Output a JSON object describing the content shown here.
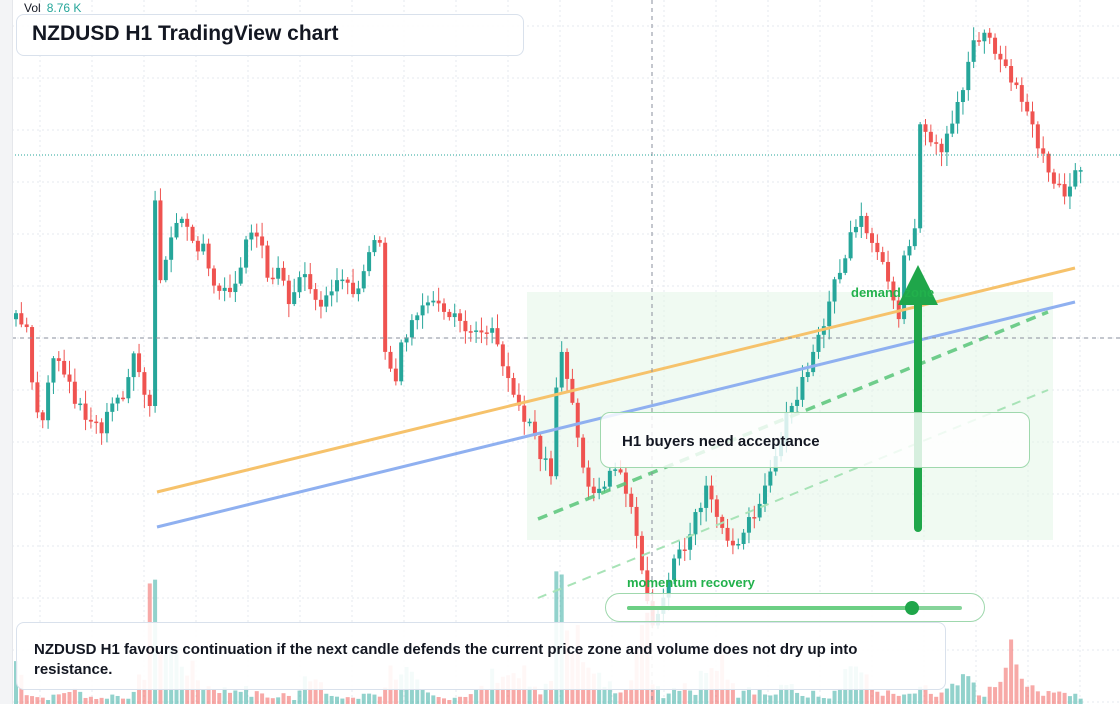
{
  "header": {
    "title": "NZDUSD H1 TradingView chart"
  },
  "volume_readout": {
    "label": "Vol",
    "value": "8.76 K"
  },
  "annotations": {
    "note": "H1 buyers need acceptance",
    "demand_zone_label": "demand zone",
    "momentum_label": "momentum recovery",
    "momentum_level": 0.85
  },
  "footer": {
    "text": "NZDUSD H1 favours continuation if the next candle defends the current price zone and volume does not dry up into resistance."
  },
  "colors": {
    "bull": "#26a69a",
    "bear": "#ef5350",
    "accent_green": "#1fa64a",
    "orange_trendline": "#f6c26b",
    "blue_trendline": "#8fb0f0",
    "grid": "#e6e9ef"
  },
  "chart_data": {
    "type": "candlestick",
    "title": "NZDUSD H1",
    "ylim": [
      0,
      700
    ],
    "close_path": [
      [
        0,
        318
      ],
      [
        2,
        330
      ],
      [
        3,
        390
      ],
      [
        5,
        420
      ],
      [
        7,
        360
      ],
      [
        9,
        372
      ],
      [
        11,
        400
      ],
      [
        14,
        420
      ],
      [
        16,
        428
      ],
      [
        18,
        406
      ],
      [
        20,
        392
      ],
      [
        22,
        360
      ],
      [
        24,
        395
      ],
      [
        25,
        410
      ],
      [
        26,
        202
      ],
      [
        27,
        280
      ],
      [
        29,
        245
      ],
      [
        31,
        215
      ],
      [
        33,
        240
      ],
      [
        35,
        250
      ],
      [
        37,
        290
      ],
      [
        40,
        298
      ],
      [
        42,
        262
      ],
      [
        44,
        232
      ],
      [
        46,
        248
      ],
      [
        47,
        282
      ],
      [
        49,
        268
      ],
      [
        51,
        302
      ],
      [
        53,
        270
      ],
      [
        55,
        282
      ],
      [
        57,
        308
      ],
      [
        59,
        296
      ],
      [
        61,
        276
      ],
      [
        64,
        292
      ],
      [
        66,
        255
      ],
      [
        68,
        236
      ],
      [
        69,
        350
      ],
      [
        71,
        378
      ],
      [
        72,
        346
      ],
      [
        74,
        326
      ],
      [
        76,
        298
      ],
      [
        79,
        306
      ],
      [
        81,
        316
      ],
      [
        84,
        326
      ],
      [
        87,
        332
      ],
      [
        89,
        330
      ],
      [
        91,
        372
      ],
      [
        93,
        388
      ],
      [
        95,
        415
      ],
      [
        97,
        430
      ],
      [
        98,
        460
      ],
      [
        100,
        470
      ],
      [
        101,
        390
      ],
      [
        102,
        356
      ],
      [
        104,
        410
      ],
      [
        106,
        470
      ],
      [
        108,
        488
      ],
      [
        110,
        486
      ],
      [
        112,
        470
      ],
      [
        113,
        478
      ],
      [
        115,
        510
      ],
      [
        117,
        570
      ],
      [
        119,
        630
      ],
      [
        121,
        595
      ],
      [
        123,
        565
      ],
      [
        125,
        550
      ],
      [
        127,
        520
      ],
      [
        129,
        492
      ],
      [
        131,
        520
      ],
      [
        133,
        538
      ],
      [
        136,
        538
      ],
      [
        138,
        512
      ],
      [
        140,
        480
      ],
      [
        142,
        455
      ],
      [
        144,
        420
      ],
      [
        146,
        398
      ],
      [
        148,
        370
      ],
      [
        150,
        338
      ],
      [
        152,
        300
      ],
      [
        154,
        270
      ],
      [
        156,
        240
      ],
      [
        158,
        222
      ],
      [
        160,
        250
      ],
      [
        162,
        262
      ],
      [
        164,
        300
      ],
      [
        165,
        312
      ],
      [
        166,
        262
      ],
      [
        168,
        235
      ],
      [
        169,
        130
      ],
      [
        171,
        145
      ],
      [
        173,
        155
      ],
      [
        175,
        125
      ],
      [
        177,
        85
      ],
      [
        179,
        40
      ],
      [
        181,
        30
      ],
      [
        183,
        50
      ],
      [
        185,
        70
      ],
      [
        186,
        78
      ],
      [
        188,
        100
      ],
      [
        190,
        125
      ],
      [
        192,
        160
      ],
      [
        194,
        185
      ],
      [
        196,
        192
      ],
      [
        198,
        175
      ],
      [
        200,
        158
      ]
    ],
    "volume_heights": [
      [
        0,
        48
      ],
      [
        2,
        14
      ],
      [
        4,
        8
      ],
      [
        6,
        6
      ],
      [
        8,
        10
      ],
      [
        10,
        16
      ],
      [
        12,
        12
      ],
      [
        14,
        8
      ],
      [
        16,
        6
      ],
      [
        18,
        10
      ],
      [
        20,
        8
      ],
      [
        22,
        10
      ],
      [
        24,
        38
      ],
      [
        25,
        140
      ],
      [
        26,
        102
      ],
      [
        27,
        72
      ],
      [
        29,
        62
      ],
      [
        31,
        50
      ],
      [
        33,
        35
      ],
      [
        35,
        20
      ],
      [
        37,
        18
      ],
      [
        40,
        14
      ],
      [
        42,
        20
      ],
      [
        44,
        10
      ],
      [
        46,
        12
      ],
      [
        48,
        6
      ],
      [
        50,
        10
      ],
      [
        52,
        6
      ],
      [
        54,
        32
      ],
      [
        56,
        42
      ],
      [
        58,
        10
      ],
      [
        60,
        6
      ],
      [
        62,
        8
      ],
      [
        64,
        6
      ],
      [
        66,
        12
      ],
      [
        68,
        10
      ],
      [
        70,
        36
      ],
      [
        72,
        40
      ],
      [
        74,
        28
      ],
      [
        76,
        12
      ],
      [
        78,
        8
      ],
      [
        80,
        6
      ],
      [
        84,
        10
      ],
      [
        86,
        14
      ],
      [
        88,
        20
      ],
      [
        90,
        38
      ],
      [
        92,
        30
      ],
      [
        94,
        42
      ],
      [
        96,
        20
      ],
      [
        98,
        10
      ],
      [
        100,
        36
      ],
      [
        101,
        120
      ],
      [
        102,
        110
      ],
      [
        103,
        100
      ],
      [
        104,
        90
      ],
      [
        105,
        120
      ],
      [
        106,
        40
      ],
      [
        108,
        30
      ],
      [
        110,
        24
      ],
      [
        112,
        16
      ],
      [
        114,
        24
      ],
      [
        116,
        60
      ],
      [
        118,
        80
      ],
      [
        119,
        30
      ],
      [
        121,
        10
      ],
      [
        123,
        18
      ],
      [
        125,
        26
      ],
      [
        127,
        12
      ],
      [
        129,
        48
      ],
      [
        131,
        60
      ],
      [
        133,
        40
      ],
      [
        135,
        10
      ],
      [
        137,
        20
      ],
      [
        139,
        14
      ],
      [
        141,
        8
      ],
      [
        143,
        16
      ],
      [
        145,
        20
      ],
      [
        147,
        10
      ],
      [
        150,
        12
      ],
      [
        152,
        8
      ],
      [
        155,
        36
      ],
      [
        156,
        44
      ],
      [
        157,
        46
      ],
      [
        158,
        34
      ],
      [
        160,
        16
      ],
      [
        164,
        10
      ],
      [
        166,
        8
      ],
      [
        168,
        12
      ],
      [
        170,
        16
      ],
      [
        172,
        8
      ],
      [
        174,
        14
      ],
      [
        176,
        20
      ],
      [
        178,
        28
      ],
      [
        180,
        10
      ],
      [
        182,
        14
      ],
      [
        184,
        22
      ],
      [
        185,
        44
      ],
      [
        186,
        60
      ],
      [
        187,
        36
      ],
      [
        189,
        20
      ],
      [
        191,
        12
      ],
      [
        193,
        16
      ],
      [
        195,
        10
      ],
      [
        197,
        12
      ],
      [
        199,
        8
      ]
    ],
    "candle_count": 200
  }
}
